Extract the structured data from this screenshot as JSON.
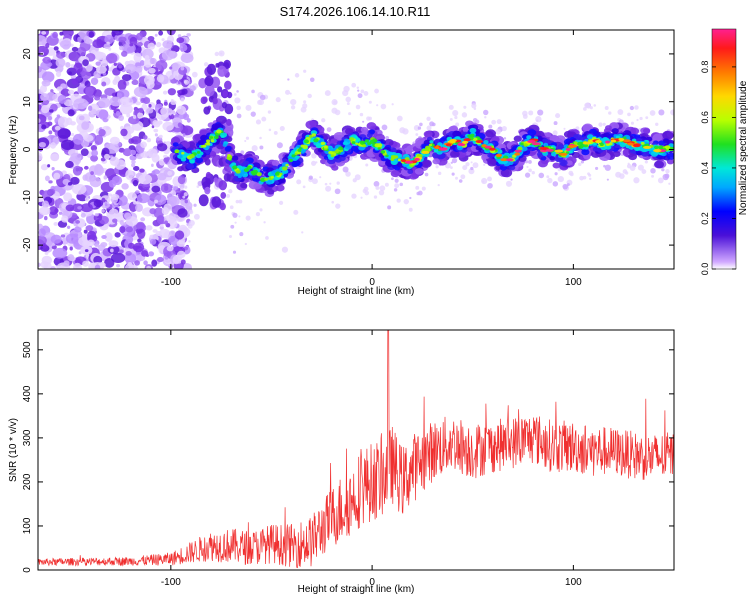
{
  "title": "S174.2026.106.14.10.R11",
  "chart_data": [
    {
      "type": "heatmap",
      "name": "spectrogram",
      "xlabel": "Height of straight line (km)",
      "ylabel": "Frequency (Hz)",
      "xlim": [
        -166,
        150
      ],
      "ylim": [
        -25,
        25
      ],
      "xticks": [
        -100,
        0,
        100
      ],
      "yticks": [
        -20,
        -10,
        0,
        10,
        20
      ],
      "colorbar": {
        "label": "Normalized spectral amplitude",
        "range": [
          0,
          0.95
        ],
        "ticks": [
          0.0,
          0.2,
          0.4,
          0.6,
          0.8
        ],
        "colors": [
          "#ffffff",
          "#e0c8ff",
          "#9c5cf0",
          "#5a1ee0",
          "#2020ff",
          "#00a0ff",
          "#00e8d8",
          "#20e020",
          "#b0ff00",
          "#ffd000",
          "#ff7a00",
          "#ff2a2a",
          "#ff2090"
        ]
      },
      "track": {
        "x": [
          -100,
          -95,
          -90,
          -85,
          -80,
          -75,
          -70,
          -65,
          -60,
          -55,
          -50,
          -45,
          -40,
          -35,
          -30,
          -25,
          -20,
          -15,
          -10,
          -5,
          0,
          5,
          10,
          15,
          20,
          25,
          30,
          35,
          40,
          45,
          50,
          55,
          60,
          65,
          70,
          75,
          80,
          85,
          90,
          95,
          100,
          105,
          110,
          115,
          120,
          125,
          130,
          135,
          140,
          145,
          150
        ],
        "freq": [
          0,
          -1,
          -2,
          0,
          2,
          4,
          -3,
          -5,
          -4,
          -6,
          -6,
          -5,
          -2,
          0,
          3,
          1,
          -1,
          0,
          2,
          1,
          2,
          0,
          -2,
          -2,
          -3,
          -1,
          1,
          0,
          2,
          1,
          3,
          1,
          0,
          -2,
          -2,
          1,
          2,
          0,
          0,
          -1,
          1,
          1,
          2,
          1,
          2,
          2,
          1,
          1,
          0,
          0,
          0
        ]
      }
    },
    {
      "type": "line",
      "name": "snr",
      "xlabel": "Height of straight line (km)",
      "ylabel": "SNR (10 * v/v)",
      "xlim": [
        -166,
        150
      ],
      "ylim": [
        0,
        545
      ],
      "xticks": [
        -100,
        0,
        100
      ],
      "yticks": [
        0,
        100,
        200,
        300,
        400,
        500
      ],
      "color": "#f03030",
      "series_envelope": {
        "x": [
          -166,
          -120,
          -100,
          -90,
          -80,
          -70,
          -60,
          -50,
          -40,
          -30,
          -20,
          -15,
          -10,
          -5,
          0,
          5,
          8,
          10,
          15,
          20,
          30,
          40,
          50,
          60,
          70,
          80,
          90,
          100,
          110,
          120,
          130,
          140,
          150
        ],
        "mean": [
          18,
          20,
          25,
          40,
          55,
          55,
          50,
          60,
          55,
          65,
          120,
          140,
          160,
          190,
          200,
          210,
          230,
          240,
          200,
          230,
          270,
          290,
          270,
          280,
          290,
          300,
          280,
          280,
          270,
          270,
          260,
          255,
          260
        ],
        "spread": [
          8,
          10,
          15,
          25,
          35,
          40,
          40,
          45,
          50,
          60,
          70,
          80,
          80,
          90,
          90,
          90,
          90,
          90,
          80,
          80,
          70,
          65,
          65,
          60,
          60,
          60,
          60,
          60,
          60,
          55,
          55,
          55,
          55
        ],
        "peak": {
          "x": 8,
          "y": 545
        }
      }
    }
  ]
}
